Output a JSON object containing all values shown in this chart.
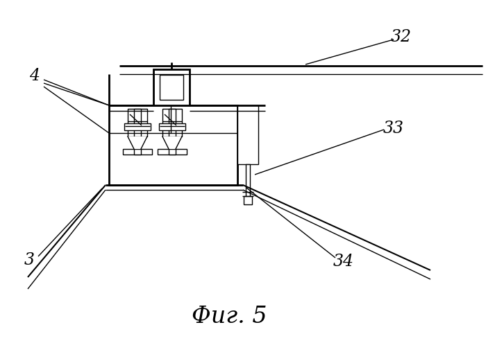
{
  "title": "Фиг. 5",
  "bg_color": "#ffffff",
  "line_color": "#000000",
  "label_4": "4",
  "label_3": "3",
  "label_32": "32",
  "label_33": "33",
  "label_34": "34",
  "title_fontsize": 24,
  "label_fontsize": 17
}
